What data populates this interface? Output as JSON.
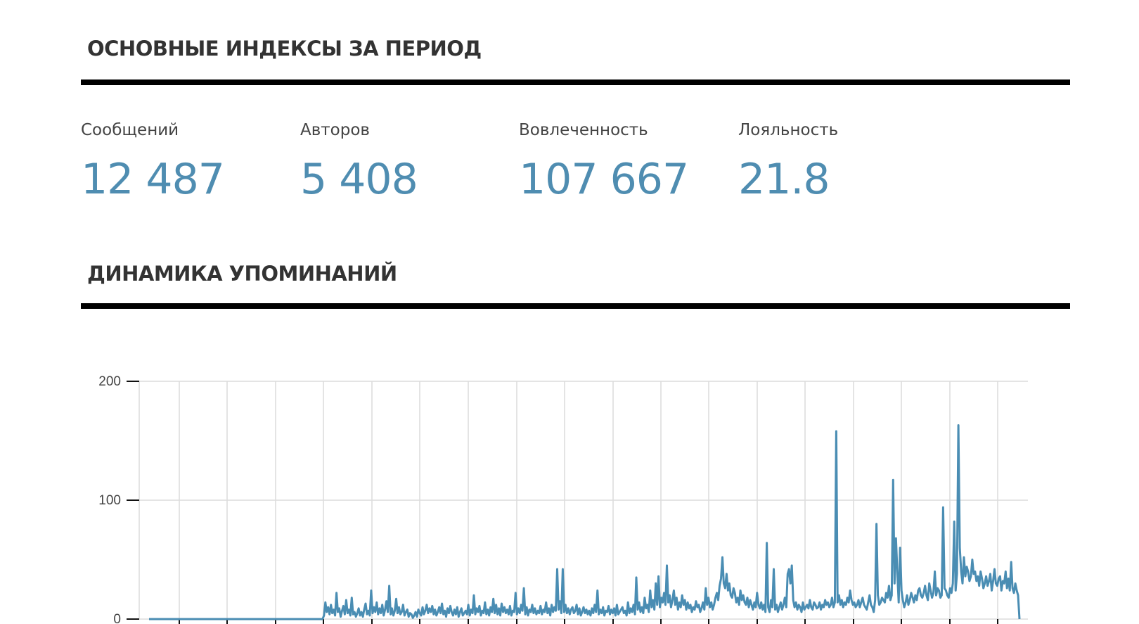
{
  "sections": {
    "indices_title": "ОСНОВНЫЕ ИНДЕКСЫ ЗА ПЕРИОД",
    "dynamics_title": "ДИНАМИКА УПОМИНАНИЙ"
  },
  "metrics": [
    {
      "label": "Сообщений",
      "value": "12 487"
    },
    {
      "label": "Авторов",
      "value": "5 408"
    },
    {
      "label": "Вовлеченность",
      "value": "107 667"
    },
    {
      "label": "Лояльность",
      "value": "21.8"
    }
  ],
  "colors": {
    "accent": "#4f8db1",
    "line": "#4a8db3",
    "rule": "#000000",
    "grid": "#dcdcdc",
    "text": "#333333"
  },
  "chart_data": {
    "type": "line",
    "title": "",
    "xlabel": "",
    "ylabel": "",
    "ylim": [
      0,
      200
    ],
    "yticks": [
      0,
      100,
      200
    ],
    "grid": true,
    "series": [
      {
        "values": [
          0,
          0,
          0,
          0,
          0,
          0,
          0,
          0,
          0,
          0,
          0,
          0,
          0,
          0,
          0,
          0,
          0,
          0,
          0,
          0,
          0,
          0,
          0,
          0,
          0,
          0,
          0,
          0,
          0,
          0,
          0,
          0,
          0,
          0,
          0,
          0,
          0,
          0,
          0,
          0,
          0,
          0,
          0,
          0,
          0,
          0,
          0,
          0,
          0,
          0,
          0,
          0,
          0,
          0,
          0,
          0,
          0,
          0,
          0,
          0,
          0,
          0,
          0,
          0,
          0,
          0,
          0,
          0,
          0,
          0,
          0,
          0,
          0,
          0,
          0,
          0,
          0,
          0,
          0,
          0,
          0,
          0,
          0,
          0,
          0,
          0,
          0,
          0,
          0,
          0,
          0,
          0,
          0,
          0,
          0,
          0,
          0,
          0,
          0,
          0,
          0,
          0,
          0,
          0,
          0,
          0,
          0,
          0,
          0,
          0,
          0,
          0,
          0,
          0,
          0,
          0,
          0,
          0,
          0,
          0,
          0,
          0,
          0,
          0,
          0,
          0,
          3,
          14,
          6,
          10,
          4,
          12,
          5,
          8,
          3,
          22,
          6,
          9,
          2,
          7,
          11,
          4,
          16,
          5,
          8,
          3,
          18,
          4,
          6,
          2,
          5,
          9,
          3,
          6,
          2,
          8,
          13,
          4,
          7,
          3,
          24,
          5,
          10,
          6,
          14,
          4,
          9,
          5,
          12,
          3,
          8,
          15,
          6,
          28,
          4,
          9,
          3,
          7,
          17,
          5,
          10,
          4,
          6,
          12,
          3,
          6,
          8,
          2,
          5,
          4,
          1,
          3,
          6,
          2,
          8,
          5,
          3,
          10,
          4,
          7,
          12,
          5,
          9,
          6,
          11,
          4,
          8,
          3,
          6,
          10,
          5,
          13,
          4,
          7,
          2,
          9,
          5,
          11,
          6,
          3,
          8,
          4,
          10,
          2,
          6,
          9,
          3,
          5,
          7,
          4,
          12,
          3,
          8,
          5,
          20,
          4,
          9,
          6,
          11,
          3,
          7,
          5,
          14,
          4,
          8,
          3,
          10,
          6,
          17,
          5,
          12,
          4,
          9,
          3,
          13,
          6,
          10,
          5,
          8,
          4,
          11,
          3,
          7,
          6,
          22,
          4,
          9,
          5,
          12,
          7,
          26,
          4,
          10,
          3,
          8,
          6,
          12,
          5,
          9,
          4,
          7,
          5,
          11,
          4,
          8,
          6,
          14,
          5,
          9,
          3,
          12,
          6,
          10,
          7,
          42,
          8,
          15,
          5,
          42,
          6,
          12,
          5,
          9,
          4,
          8,
          10,
          5,
          7,
          12,
          4,
          9,
          3,
          6,
          10,
          5,
          8,
          4,
          7,
          3,
          9,
          5,
          12,
          6,
          24,
          4,
          8,
          5,
          10,
          3,
          7,
          6,
          11,
          4,
          8,
          5,
          9,
          3,
          12,
          4,
          6,
          8,
          10,
          5,
          7,
          3,
          14,
          5,
          9,
          6,
          12,
          4,
          35,
          8,
          14,
          6,
          10,
          5,
          18,
          9,
          12,
          6,
          24,
          10,
          16,
          8,
          30,
          12,
          36,
          10,
          18,
          14,
          22,
          12,
          45,
          14,
          20,
          10,
          16,
          24,
          12,
          18,
          8,
          14,
          10,
          20,
          12,
          16,
          8,
          14,
          9,
          12,
          6,
          10,
          8,
          15,
          10,
          12,
          6,
          9,
          14,
          8,
          26,
          12,
          18,
          10,
          14,
          8,
          12,
          18,
          22,
          16,
          28,
          34,
          52,
          30,
          26,
          38,
          24,
          30,
          20,
          18,
          26,
          22,
          14,
          18,
          12,
          24,
          16,
          20,
          14,
          12,
          18,
          10,
          16,
          12,
          8,
          14,
          10,
          22,
          12,
          9,
          14,
          8,
          12,
          6,
          64,
          10,
          6,
          16,
          10,
          42,
          8,
          12,
          6,
          10,
          14,
          8,
          12,
          18,
          10,
          38,
          42,
          30,
          45,
          16,
          10,
          14,
          8,
          12,
          10,
          6,
          14,
          8,
          10,
          12,
          9,
          16,
          10,
          8,
          14,
          12,
          9,
          10,
          14,
          8,
          12,
          10,
          16,
          12,
          14,
          10,
          12,
          18,
          10,
          14,
          158,
          14,
          20,
          12,
          16,
          10,
          14,
          12,
          18,
          14,
          24,
          16,
          12,
          14,
          10,
          12,
          16,
          10,
          14,
          18,
          12,
          10,
          8,
          14,
          20,
          12,
          10,
          6,
          16,
          80,
          20,
          12,
          14,
          18,
          16,
          14,
          22,
          18,
          28,
          16,
          20,
          117,
          30,
          68,
          40,
          14,
          60,
          24,
          16,
          10,
          14,
          20,
          12,
          16,
          22,
          18,
          14,
          20,
          16,
          24,
          26,
          20,
          18,
          22,
          28,
          20,
          16,
          30,
          24,
          18,
          22,
          40,
          20,
          26,
          24,
          18,
          20,
          94,
          26,
          24,
          20,
          18,
          26,
          22,
          30,
          82,
          24,
          38,
          163,
          60,
          40,
          30,
          52,
          36,
          44,
          40,
          32,
          36,
          50,
          38,
          40,
          32,
          36,
          28,
          40,
          34,
          26,
          30,
          36,
          28,
          32,
          38,
          24,
          32,
          42,
          30,
          28,
          34,
          36,
          24,
          32,
          30,
          40,
          26,
          34,
          24,
          48,
          26,
          22,
          30,
          24,
          20,
          0
        ]
      }
    ]
  }
}
